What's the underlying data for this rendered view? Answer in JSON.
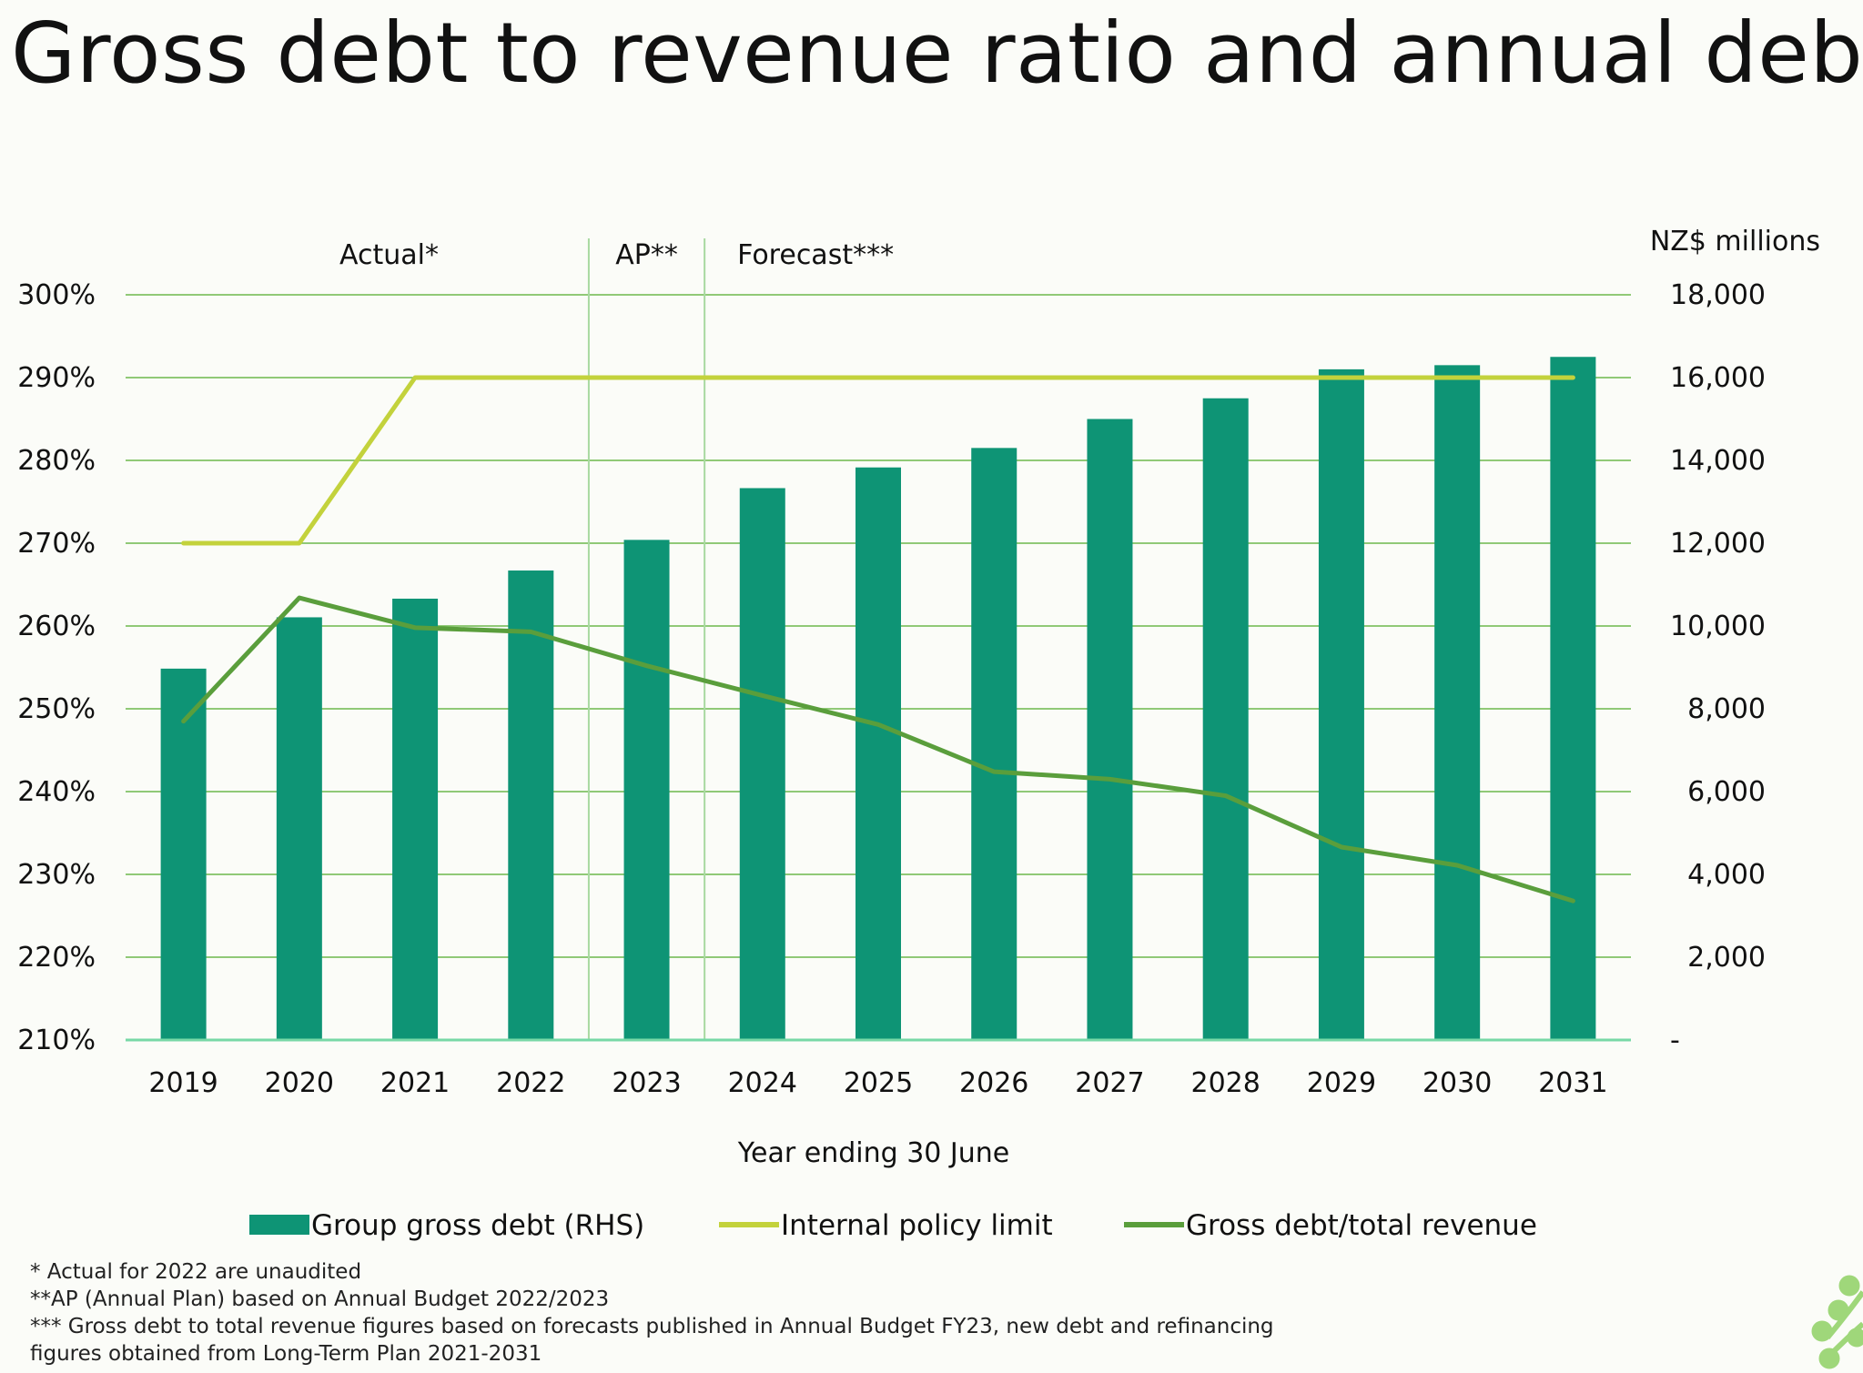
{
  "title": "Gross debt to revenue ratio and annual debt",
  "chart_data": {
    "type": "bar",
    "categories": [
      "2019",
      "2020",
      "2021",
      "2022",
      "2023",
      "2024",
      "2025",
      "2026",
      "2027",
      "2028",
      "2029",
      "2030",
      "2031"
    ],
    "series": [
      {
        "name": "Group gross debt (RHS)",
        "type": "bar",
        "axis": "right",
        "color": "#0e9475",
        "values": [
          8970,
          10210,
          10660,
          11340,
          12080,
          13330,
          13830,
          14300,
          15000,
          15500,
          16200,
          16300,
          16500
        ]
      },
      {
        "name": "Internal policy limit",
        "type": "line",
        "axis": "left",
        "color": "#c3d23c",
        "values": [
          270,
          270,
          290,
          290,
          290,
          290,
          290,
          290,
          290,
          290,
          290,
          290,
          290
        ]
      },
      {
        "name": "Gross debt/total revenue",
        "type": "line",
        "axis": "left",
        "color": "#5a9e3c",
        "values": [
          248.5,
          263.4,
          259.8,
          259.3,
          255.2,
          251.6,
          248.1,
          242.4,
          241.5,
          239.5,
          233.3,
          231.1,
          226.8
        ]
      }
    ],
    "left_axis": {
      "ylim": [
        210,
        300
      ],
      "ticks": [
        210,
        220,
        230,
        240,
        250,
        260,
        270,
        280,
        290,
        300
      ],
      "tick_labels": [
        "210%",
        "220%",
        "230%",
        "240%",
        "250%",
        "260%",
        "270%",
        "280%",
        "290%",
        "300%"
      ]
    },
    "right_axis": {
      "title": "NZ$ millions",
      "ylim": [
        0,
        18000
      ],
      "ticks": [
        0,
        2000,
        4000,
        6000,
        8000,
        10000,
        12000,
        14000,
        16000,
        18000
      ],
      "tick_labels": [
        "-",
        "2,000",
        "4,000",
        "6,000",
        "8,000",
        "10,000",
        "12,000",
        "14,000",
        "16,000",
        "18,000"
      ]
    },
    "xlabel": "Year ending 30 June",
    "period_labels": [
      "Actual*",
      "AP**",
      "Forecast***"
    ],
    "period_dividers_after": [
      "2022",
      "2023"
    ],
    "grid": true,
    "legend": "bottom"
  },
  "footnotes": [
    "* Actual for 2022 are unaudited",
    "**AP (Annual Plan) based on Annual Budget 2022/2023",
    "*** Gross debt to total revenue figures based on forecasts published in Annual Budget FY23, new debt and refinancing",
    "figures obtained from Long-Term Plan 2021-2031"
  ],
  "colors": {
    "grid": "#6cb84c",
    "baseline": "#77d8a6",
    "divider": "#a8d9a0"
  }
}
